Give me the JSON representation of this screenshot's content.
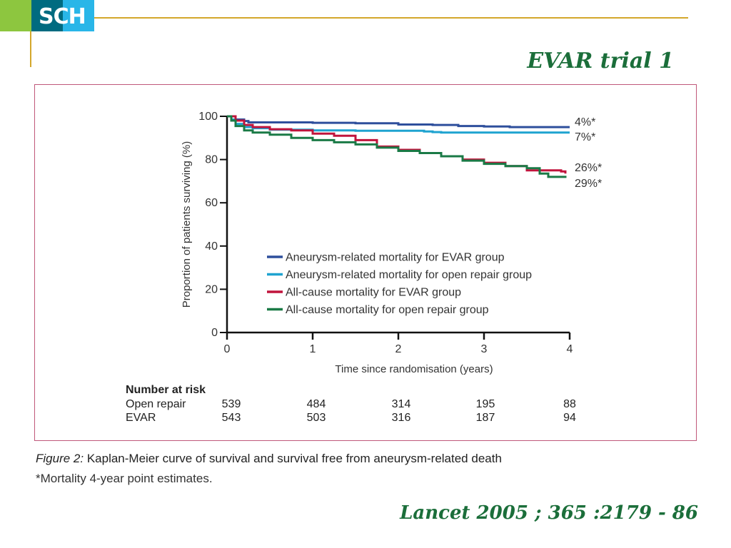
{
  "header": {
    "logo_text": "SCH",
    "slide_title": "EVAR trial 1"
  },
  "figure": {
    "caption_label": "Figure 2:",
    "caption_text": " Kaplan-Meier curve of survival and survival free from aneurysm-related death",
    "caption_note": "*Mortality 4-year point estimates."
  },
  "citation": "Lancet 2005 ; 365 :2179 - 86",
  "chart_data": {
    "type": "line",
    "title": "",
    "xlabel": "Time since randomisation (years)",
    "ylabel": "Proportion of patients surviving (%)",
    "xlim": [
      0,
      4
    ],
    "ylim": [
      0,
      100
    ],
    "xticks": [
      0,
      1,
      2,
      3,
      4
    ],
    "yticks": [
      0,
      20,
      40,
      60,
      80,
      100
    ],
    "grid": false,
    "legend_position": "center-right",
    "series": [
      {
        "name": "Aneurysm-related mortality for EVAR group",
        "color": "#2e4f9c",
        "end_label": "4%*",
        "x": [
          0,
          0.1,
          0.2,
          0.25,
          0.5,
          1.0,
          1.5,
          2.0,
          2.4,
          2.7,
          3.0,
          3.3,
          4.0
        ],
        "y": [
          100,
          98.5,
          97.8,
          97.2,
          97.2,
          97.0,
          96.8,
          96.2,
          96.0,
          95.5,
          95.3,
          95.0,
          95.0
        ]
      },
      {
        "name": "Aneurysm-related mortality for open repair group",
        "color": "#1fa3d0",
        "end_label": "7%*",
        "x": [
          0,
          0.05,
          0.1,
          0.2,
          0.3,
          0.5,
          1.0,
          1.5,
          2.0,
          2.3,
          2.4,
          2.5,
          4.0
        ],
        "y": [
          100,
          98.5,
          96.5,
          95.0,
          94.5,
          93.8,
          93.5,
          93.3,
          93.3,
          93.0,
          92.7,
          92.5,
          92.5
        ]
      },
      {
        "name": "All-cause mortality for EVAR group",
        "color": "#c0143c",
        "end_label": "26%*",
        "x": [
          0,
          0.1,
          0.2,
          0.3,
          0.5,
          0.75,
          1.0,
          1.25,
          1.5,
          1.75,
          2.0,
          2.25,
          2.5,
          2.75,
          3.0,
          3.25,
          3.5,
          3.75,
          3.9,
          3.95
        ],
        "y": [
          100,
          98.0,
          96.0,
          95.0,
          94.0,
          93.5,
          92.0,
          91.0,
          89.0,
          86.0,
          84.5,
          83.0,
          81.5,
          80.0,
          78.5,
          77.0,
          75.0,
          75.0,
          74.5,
          73.5
        ]
      },
      {
        "name": "All-cause mortality for open repair group",
        "color": "#1a7a46",
        "end_label": "29%*",
        "x": [
          0,
          0.05,
          0.1,
          0.2,
          0.3,
          0.5,
          0.75,
          1.0,
          1.25,
          1.5,
          1.75,
          2.0,
          2.25,
          2.5,
          2.75,
          3.0,
          3.25,
          3.5,
          3.65,
          3.75,
          3.95
        ],
        "y": [
          100,
          98.0,
          95.5,
          93.5,
          92.5,
          91.5,
          90.0,
          89.0,
          88.0,
          87.0,
          85.5,
          84.0,
          83.0,
          81.5,
          79.5,
          78.0,
          77.0,
          76.0,
          73.5,
          72.0,
          71.5
        ]
      }
    ],
    "number_at_risk": {
      "heading": "Number at risk",
      "rows": [
        {
          "label": "Open repair",
          "values": [
            539,
            484,
            314,
            195,
            88
          ]
        },
        {
          "label": "EVAR",
          "values": [
            543,
            503,
            316,
            187,
            94
          ]
        }
      ]
    }
  }
}
